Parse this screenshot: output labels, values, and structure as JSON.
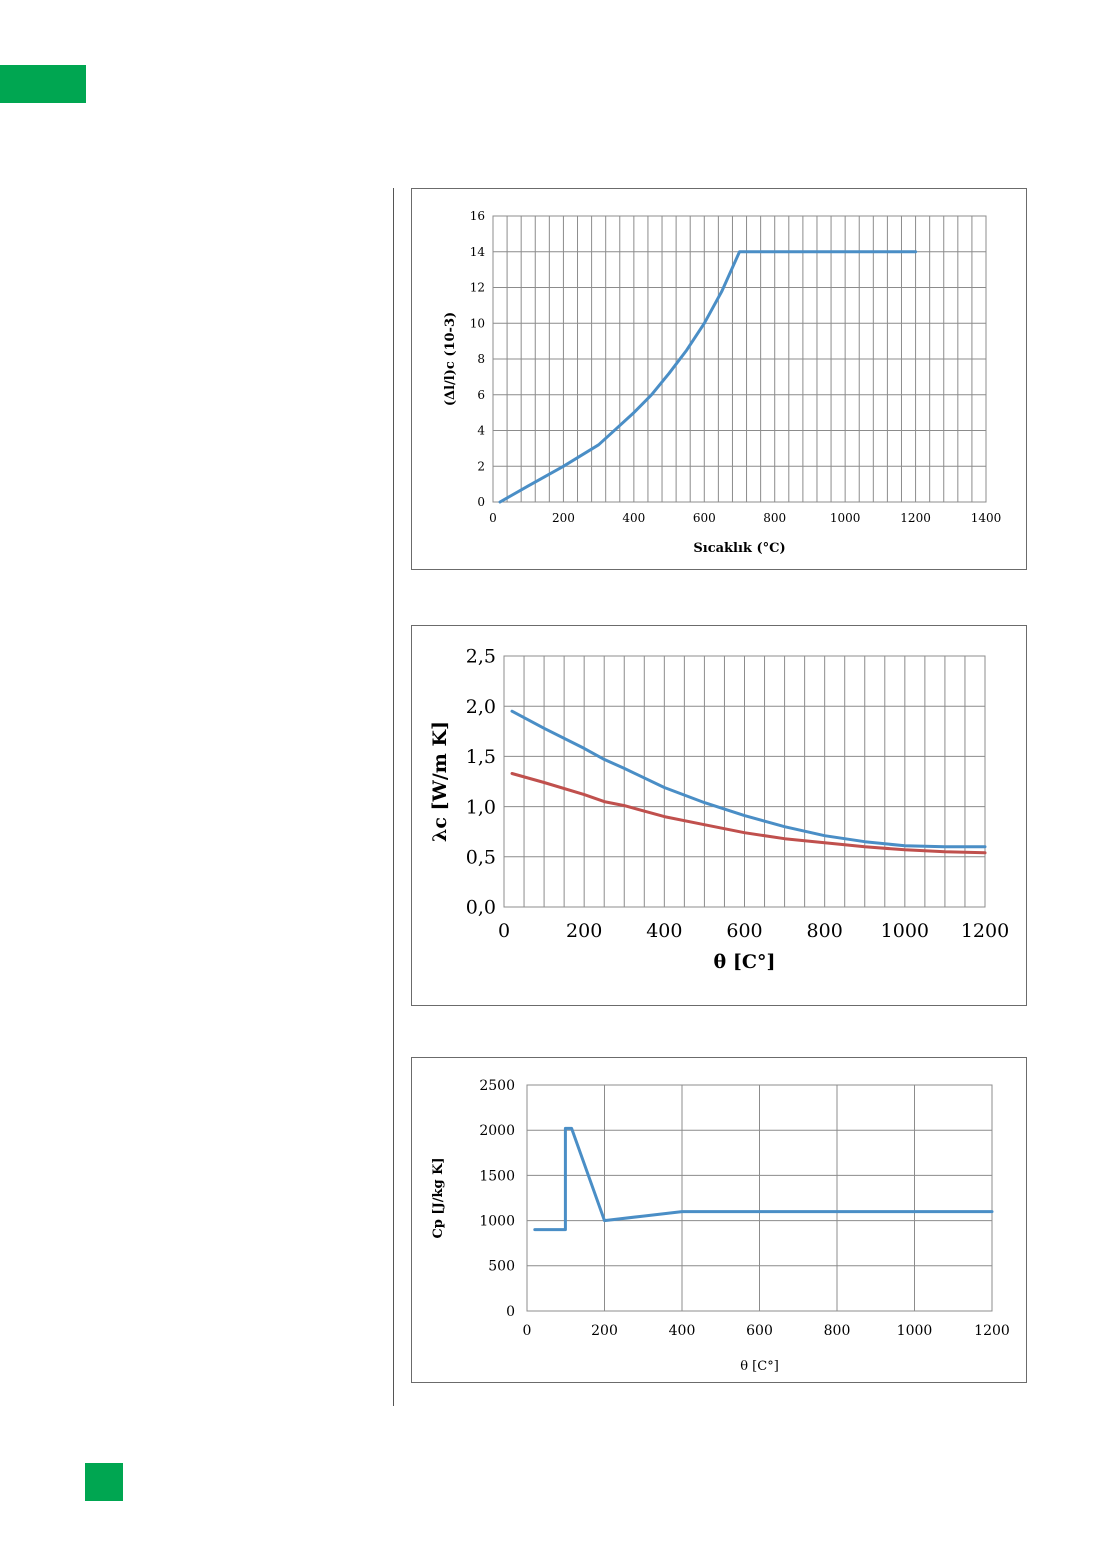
{
  "colors": {
    "accent_green": "#00a651",
    "series_blue": "#4a8ec6",
    "series_red": "#c0504d"
  },
  "chart_data": [
    {
      "type": "line",
      "title": "",
      "xlabel": "Sıcaklık (°C)",
      "ylabel": "(Δl/l)c (10-3)",
      "xlim": [
        0,
        1400
      ],
      "ylim": [
        0,
        16
      ],
      "x_ticks": [
        "0",
        "200",
        "400",
        "600",
        "800",
        "1000",
        "1200",
        "1400"
      ],
      "y_ticks": [
        "0",
        "2",
        "4",
        "6",
        "8",
        "10",
        "12",
        "14",
        "16"
      ],
      "grid": true,
      "series": [
        {
          "color": "#4a8ec6",
          "x": [
            20,
            100,
            200,
            300,
            350,
            400,
            450,
            500,
            550,
            600,
            650,
            700,
            1200
          ],
          "y": [
            0,
            0.9,
            2.0,
            3.2,
            4.1,
            5.0,
            6.0,
            7.2,
            8.5,
            10.0,
            11.8,
            14.0,
            14.0
          ]
        }
      ]
    },
    {
      "type": "line",
      "title": "",
      "xlabel": "θ [C°]",
      "ylabel": "λc [W/m K]",
      "xlim": [
        0,
        1200
      ],
      "ylim": [
        0,
        2.5
      ],
      "x_ticks": [
        "0",
        "200",
        "400",
        "600",
        "800",
        "1000",
        "1200"
      ],
      "y_ticks": [
        "0,0",
        "0,5",
        "1,0",
        "1,5",
        "2,0",
        "2,5"
      ],
      "grid": true,
      "series": [
        {
          "color": "#4a8ec6",
          "x": [
            20,
            100,
            200,
            250,
            300,
            400,
            500,
            600,
            700,
            800,
            900,
            1000,
            1100,
            1200
          ],
          "y": [
            1.95,
            1.78,
            1.58,
            1.47,
            1.38,
            1.19,
            1.04,
            0.91,
            0.8,
            0.71,
            0.65,
            0.61,
            0.6,
            0.6
          ]
        },
        {
          "color": "#c0504d",
          "x": [
            20,
            100,
            200,
            250,
            300,
            400,
            500,
            600,
            700,
            800,
            900,
            1000,
            1100,
            1200
          ],
          "y": [
            1.33,
            1.24,
            1.12,
            1.05,
            1.01,
            0.9,
            0.82,
            0.74,
            0.68,
            0.64,
            0.6,
            0.57,
            0.55,
            0.54
          ]
        }
      ]
    },
    {
      "type": "line",
      "title": "",
      "xlabel": "θ [C°]",
      "ylabel": "Cp [J/kg K]",
      "xlim": [
        0,
        1200
      ],
      "ylim": [
        0,
        2500
      ],
      "x_ticks": [
        "0",
        "200",
        "400",
        "600",
        "800",
        "1000",
        "1200"
      ],
      "y_ticks": [
        "0",
        "500",
        "1000",
        "1500",
        "2000",
        "2500"
      ],
      "grid": true,
      "series": [
        {
          "color": "#4a8ec6",
          "x": [
            20,
            99,
            99,
            115,
            200,
            300,
            400,
            1200
          ],
          "y": [
            900,
            900,
            2020,
            2020,
            1000,
            1050,
            1100,
            1100
          ]
        }
      ]
    }
  ]
}
